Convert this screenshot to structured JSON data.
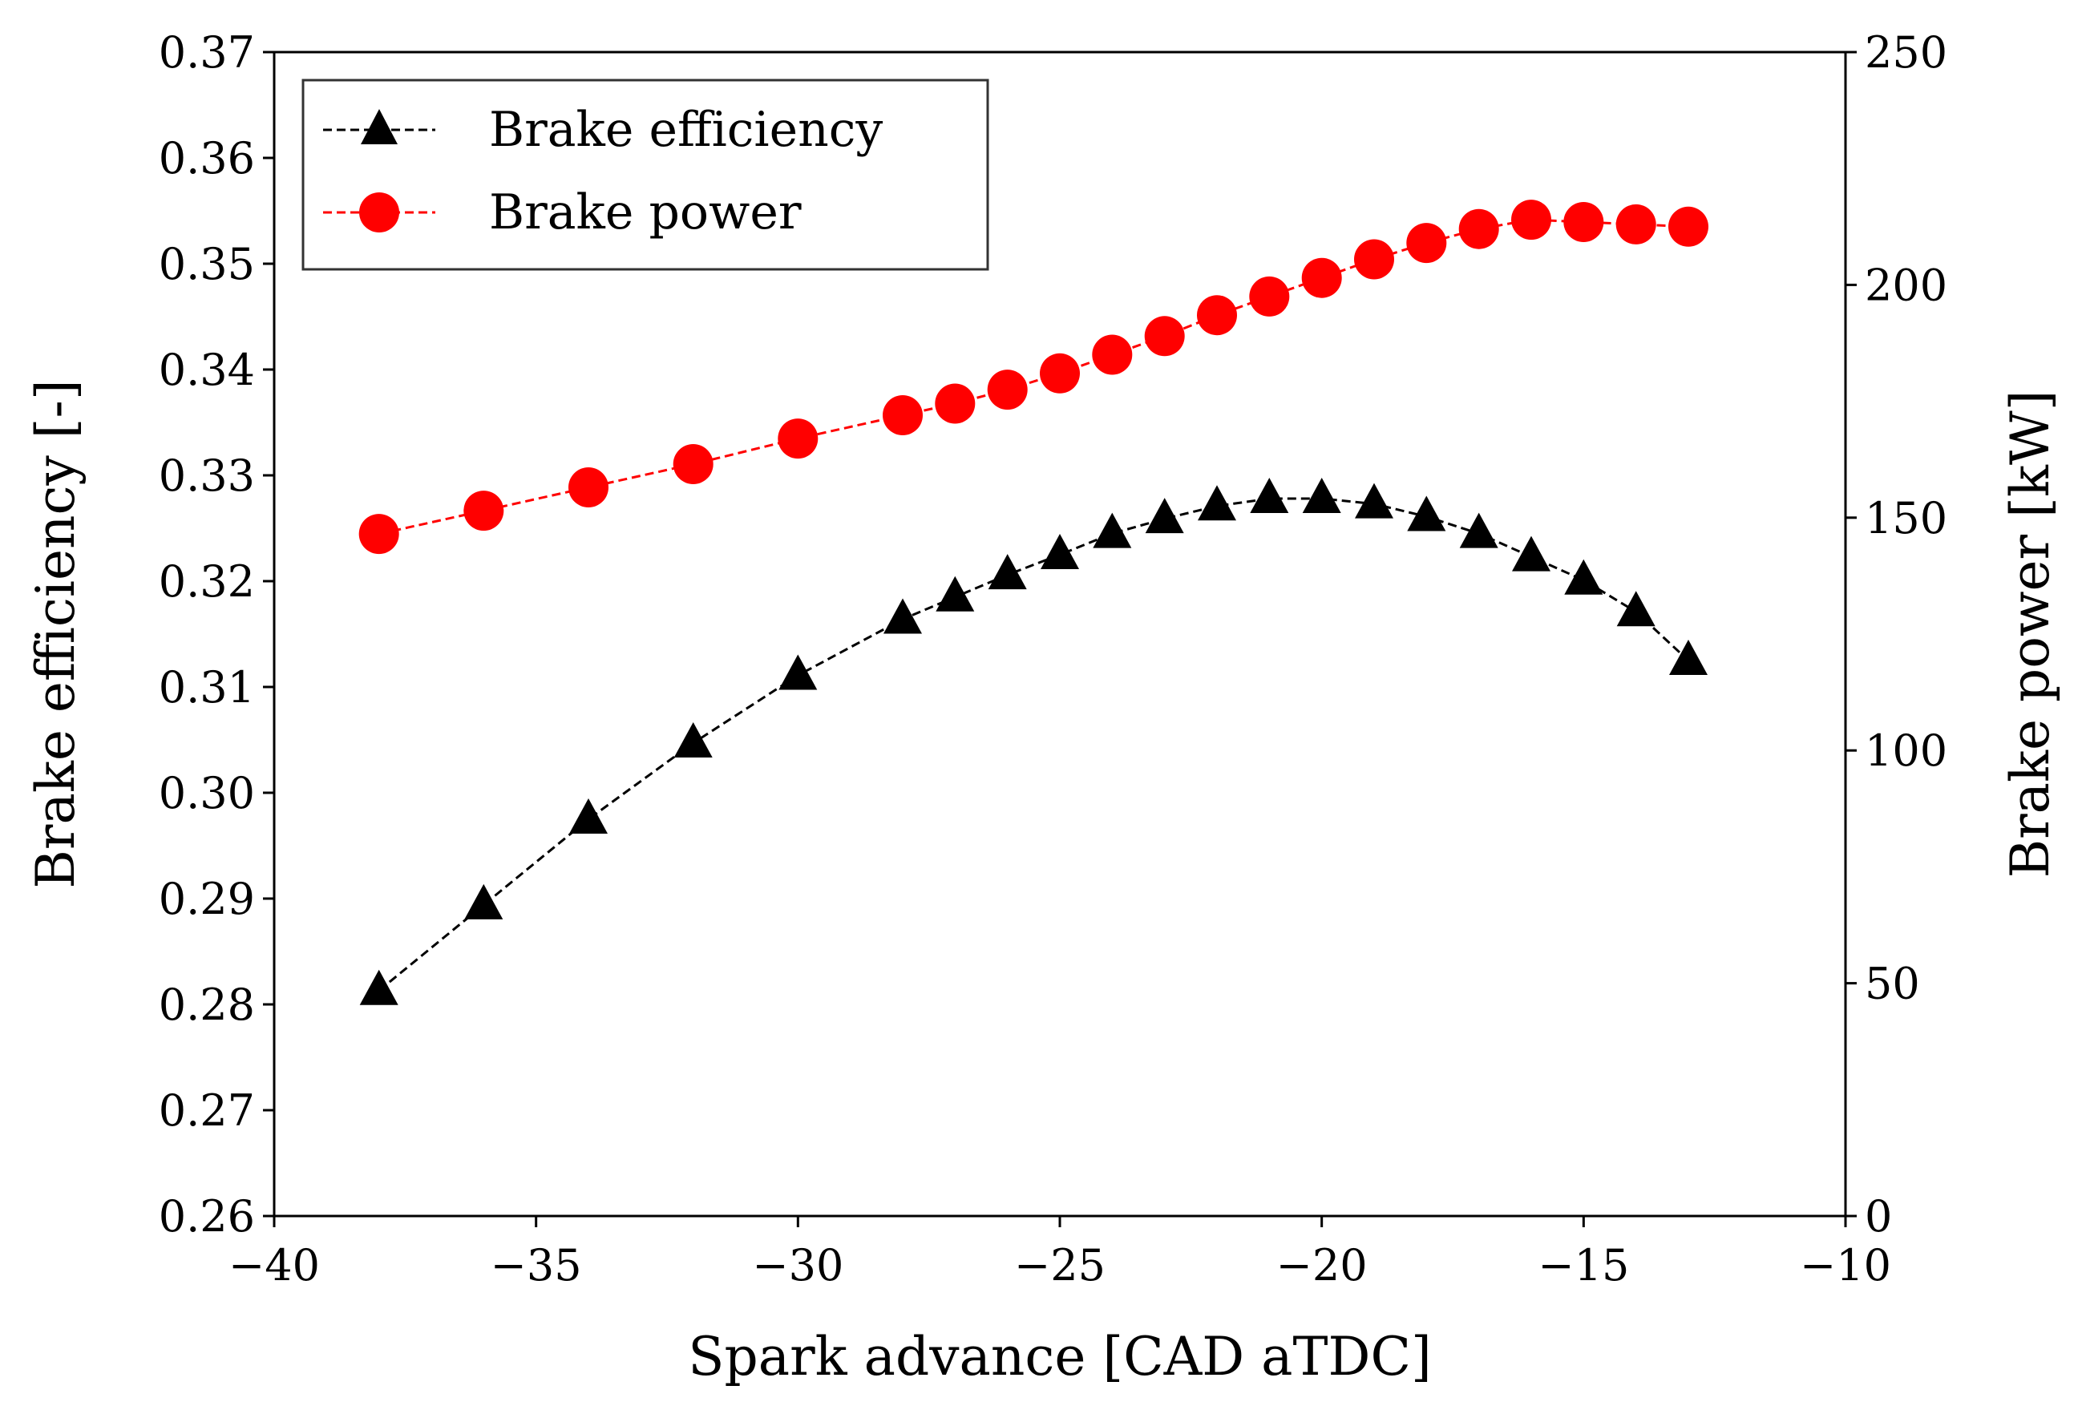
{
  "chart_data": {
    "type": "line",
    "x": [
      -38,
      -36,
      -34,
      -32,
      -30,
      -28,
      -27,
      -26,
      -25,
      -24,
      -23,
      -22,
      -21,
      -20,
      -19,
      -18,
      -17,
      -16,
      -15,
      -14,
      -13
    ],
    "xlabel": "Spark advance [CAD aTDC]",
    "ylabel_left": "Brake efficiency [-]",
    "ylabel_right": "Brake power [kW]",
    "xlim": [
      -40,
      -10
    ],
    "ylim_left": [
      0.26,
      0.37
    ],
    "ylim_right": [
      0,
      250
    ],
    "x_ticks": [
      -40,
      -35,
      -30,
      -25,
      -20,
      -15,
      -10
    ],
    "x_tick_labels": [
      "−40",
      "−35",
      "−30",
      "−25",
      "−20",
      "−15",
      "−10"
    ],
    "y_left_ticks": [
      0.26,
      0.27,
      0.28,
      0.29,
      0.3,
      0.31,
      0.32,
      0.33,
      0.34,
      0.35,
      0.36,
      0.37
    ],
    "y_left_tick_labels": [
      "0.26",
      "0.27",
      "0.28",
      "0.29",
      "0.30",
      "0.31",
      "0.32",
      "0.33",
      "0.34",
      "0.35",
      "0.36",
      "0.37"
    ],
    "y_right_ticks": [
      0,
      50,
      100,
      150,
      200,
      250
    ],
    "y_right_tick_labels": [
      "0",
      "50",
      "100",
      "150",
      "200",
      "250"
    ],
    "grid": false,
    "legend_position": "top-left",
    "series": [
      {
        "name": "Brake efficiency",
        "axis": "left",
        "color": "#000000",
        "marker": "triangle",
        "line_style": "dashed",
        "values": [
          0.2813,
          0.2894,
          0.2975,
          0.3047,
          0.3111,
          0.3164,
          0.3185,
          0.3206,
          0.3225,
          0.3245,
          0.3259,
          0.3271,
          0.3278,
          0.3278,
          0.3273,
          0.3261,
          0.3245,
          0.3223,
          0.3201,
          0.3171,
          0.3125
        ]
      },
      {
        "name": "Brake power",
        "axis": "right",
        "color": "#ff0000",
        "marker": "circle",
        "line_style": "dashed",
        "values": [
          146.5,
          151.5,
          156.5,
          161.5,
          167,
          172,
          174.5,
          177.5,
          181,
          185,
          189,
          193.5,
          197.5,
          201.5,
          205.5,
          209,
          212,
          214,
          213.5,
          213,
          212.5
        ]
      }
    ]
  }
}
